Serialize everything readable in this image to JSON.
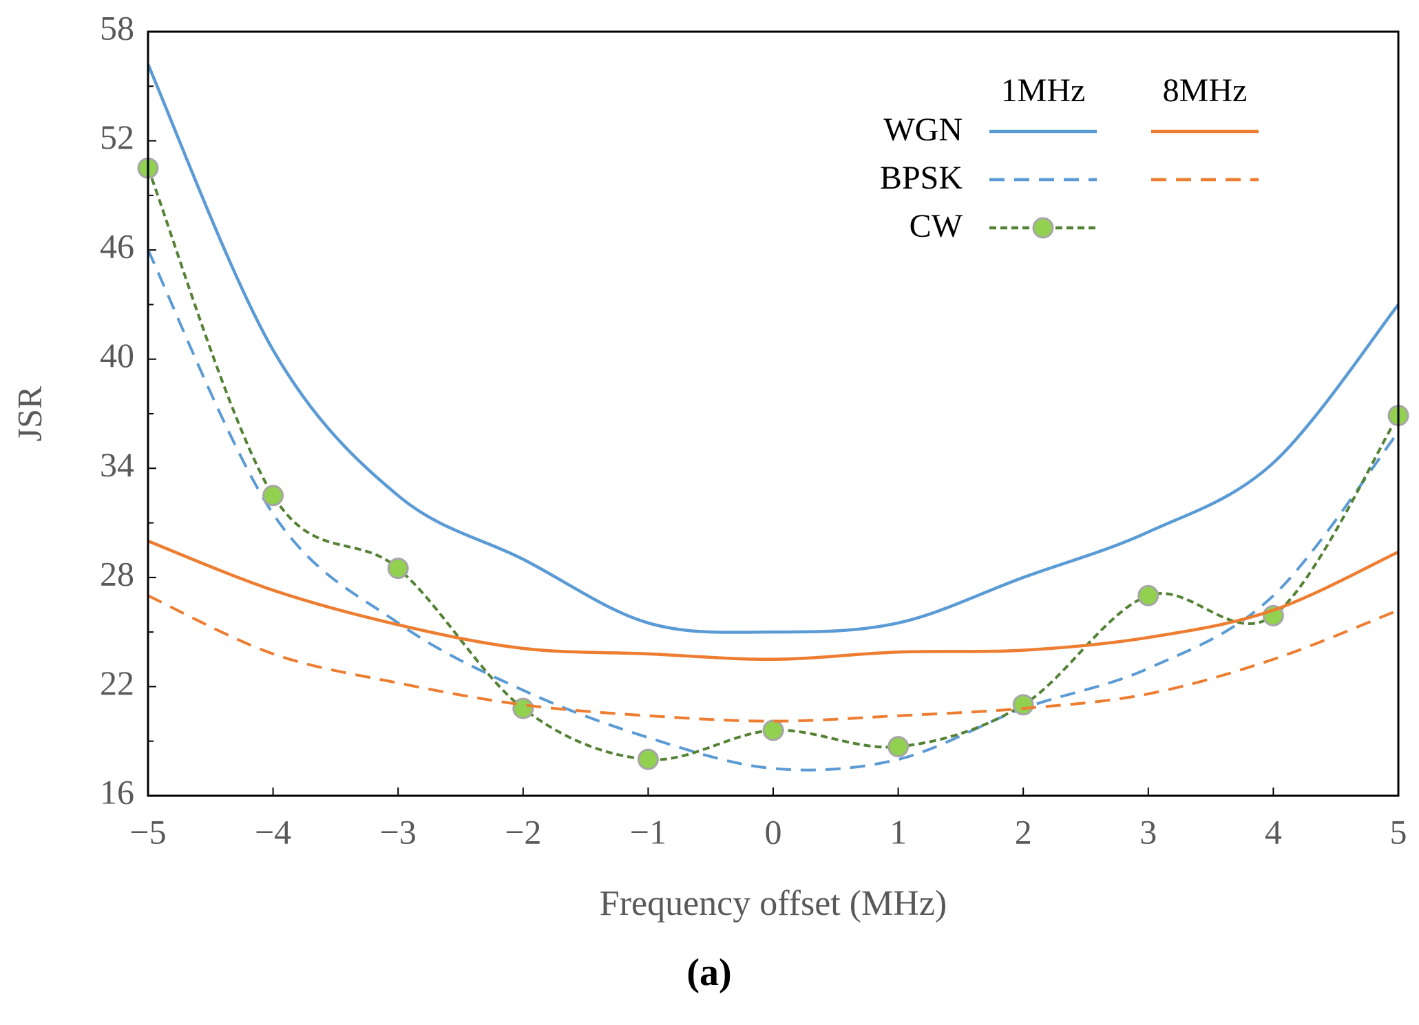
{
  "chart_data": {
    "type": "line",
    "xlabel": "Frequency offset (MHz)",
    "ylabel": "JSR",
    "caption": "(a)",
    "x": [
      -5,
      -4,
      -3,
      -2,
      -1,
      0,
      1,
      2,
      3,
      4,
      5
    ],
    "xlim": [
      -5,
      5
    ],
    "xticks": [
      {
        "value": -5,
        "label": "−5"
      },
      {
        "value": -4,
        "label": "−4"
      },
      {
        "value": -3,
        "label": "−3"
      },
      {
        "value": -2,
        "label": "−2"
      },
      {
        "value": -1,
        "label": "−1"
      },
      0,
      1,
      2,
      3,
      4,
      5
    ],
    "ylim": [
      16,
      58
    ],
    "yticks": [
      16,
      22,
      28,
      34,
      40,
      46,
      52,
      58
    ],
    "yticks_minor": [
      19,
      25,
      31,
      37,
      43,
      49,
      55
    ],
    "legend_columns": [
      "1MHz",
      "8MHz"
    ],
    "series": [
      {
        "name": "WGN",
        "column": 0,
        "color": "#5b9bd5",
        "dashed": false,
        "markers": false,
        "values": [
          56.2,
          40.5,
          32.5,
          29,
          25.5,
          25,
          25.5,
          28,
          30.5,
          34.3,
          43
        ]
      },
      {
        "name": "BPSK",
        "column": 0,
        "color": "#5b9bd5",
        "dashed": true,
        "markers": false,
        "values": [
          46,
          31.5,
          25.5,
          21.8,
          19.2,
          17.5,
          18,
          20.8,
          23,
          27,
          36
        ]
      },
      {
        "name": "CW",
        "column": 0,
        "color": "#548235",
        "dashed": true,
        "markers": true,
        "values": [
          50.5,
          32.5,
          28.5,
          20.8,
          18,
          19.6,
          18.7,
          21,
          27,
          25.9,
          36.9
        ]
      },
      {
        "name": "WGN",
        "column": 1,
        "color": "#ed7d31",
        "dashed": false,
        "markers": false,
        "values": [
          30,
          27.3,
          25.4,
          24.1,
          23.8,
          23.5,
          23.9,
          24,
          24.7,
          26.2,
          29.4
        ]
      },
      {
        "name": "BPSK",
        "column": 1,
        "color": "#ed7d31",
        "dashed": true,
        "markers": false,
        "values": [
          27,
          23.8,
          22.2,
          21,
          20.4,
          20.1,
          20.4,
          20.8,
          21.6,
          23.5,
          26.2
        ]
      }
    ]
  }
}
